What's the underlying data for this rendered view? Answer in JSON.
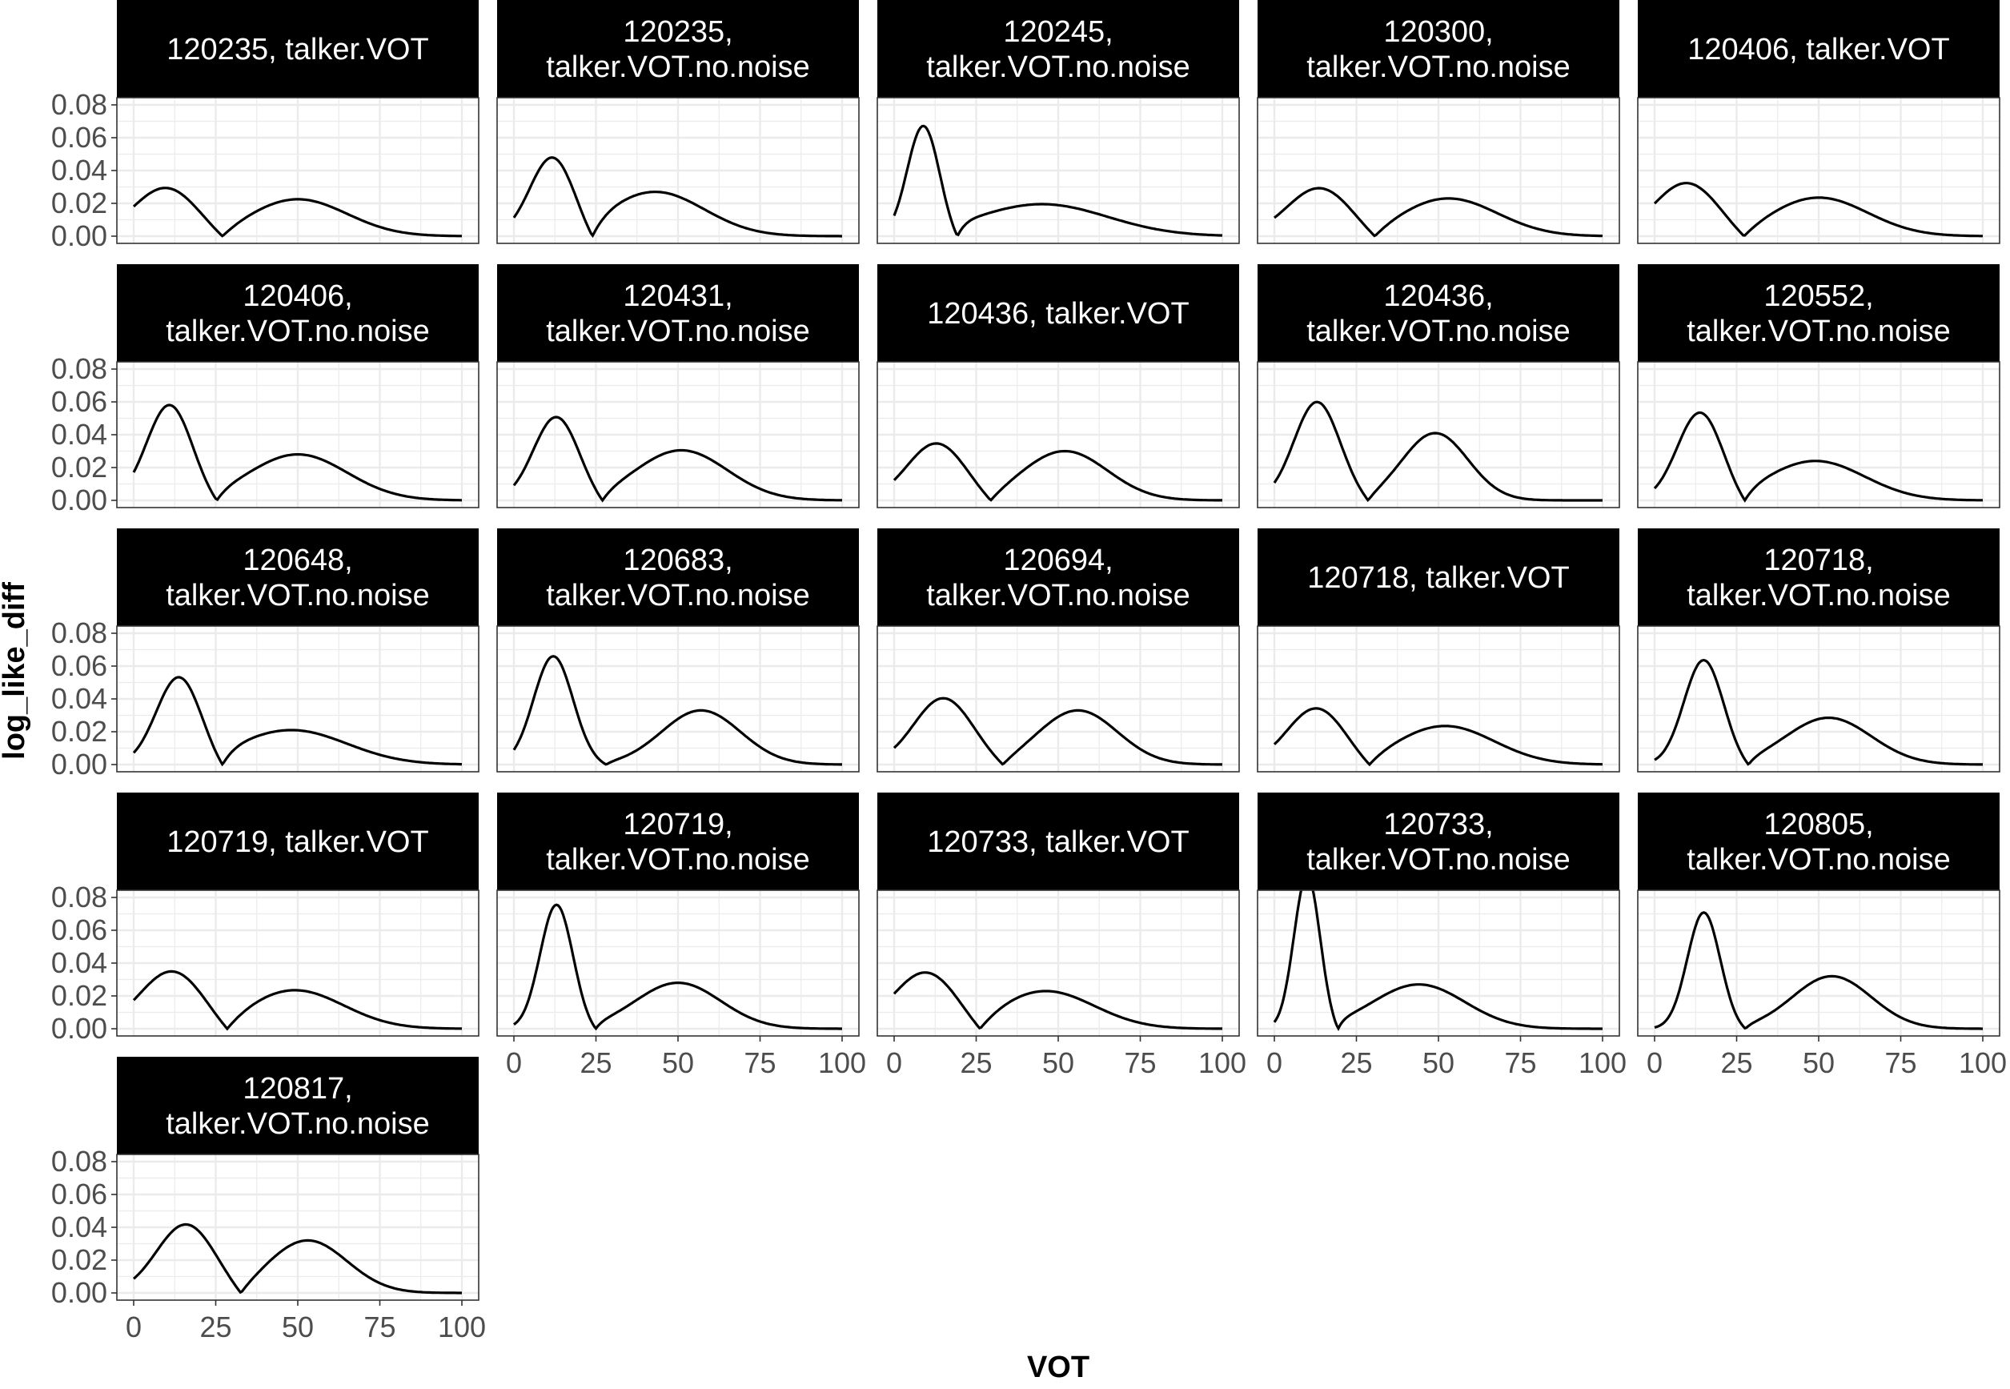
{
  "chart_data": {
    "type": "line",
    "facet_layout": "wrap",
    "x_axis_title": "VOT",
    "y_axis_title": "log_like_diff",
    "xlim": [
      0,
      100
    ],
    "ylim": [
      0,
      0.08
    ],
    "x_ticks": [
      0,
      25,
      50,
      75,
      100
    ],
    "x_tick_labels": [
      "0",
      "25",
      "50",
      "75",
      "100"
    ],
    "y_ticks": [
      0,
      0.02,
      0.04,
      0.06,
      0.08
    ],
    "y_tick_labels": [
      "0.00",
      "0.02",
      "0.04",
      "0.06",
      "0.08"
    ],
    "grid": true,
    "line_color": "#000000",
    "strip_color": "#000000",
    "strip_text_color": "#ffffff",
    "panels": [
      {
        "label": [
          "120235, talker.VOT"
        ],
        "y0": 0.02,
        "bumps": [
          [
            10,
            0.03,
            10
          ],
          [
            50,
            0.0225,
            15
          ]
        ]
      },
      {
        "label": [
          "120235,",
          "talker.VOT.no.noise"
        ],
        "y0": 0.015,
        "bumps": [
          [
            12,
            0.051,
            7
          ],
          [
            43,
            0.027,
            15
          ]
        ]
      },
      {
        "label": [
          "120245,",
          "talker.VOT.no.noise"
        ],
        "y0": 0.015,
        "bumps": [
          [
            9,
            0.071,
            5
          ],
          [
            45,
            0.0195,
            20
          ]
        ]
      },
      {
        "label": [
          "120300,",
          "talker.VOT.no.noise"
        ],
        "y0": 0.012,
        "bumps": [
          [
            14,
            0.03,
            10
          ],
          [
            53,
            0.023,
            15
          ]
        ]
      },
      {
        "label": [
          "120406, talker.VOT"
        ],
        "y0": 0.02,
        "bumps": [
          [
            10,
            0.033,
            10
          ],
          [
            50,
            0.0235,
            15
          ]
        ]
      },
      {
        "label": [
          "120406,",
          "talker.VOT.no.noise"
        ],
        "y0": 0.014,
        "bumps": [
          [
            11,
            0.059,
            7
          ],
          [
            50,
            0.028,
            15
          ]
        ]
      },
      {
        "label": [
          "120431,",
          "talker.VOT.no.noise"
        ],
        "y0": 0.012,
        "bumps": [
          [
            13,
            0.0515,
            7
          ],
          [
            51,
            0.0305,
            14
          ]
        ]
      },
      {
        "label": [
          "120436, talker.VOT"
        ],
        "y0": 0.018,
        "bumps": [
          [
            13,
            0.035,
            9
          ],
          [
            52,
            0.03,
            13
          ]
        ]
      },
      {
        "label": [
          "120436,",
          "talker.VOT.no.noise"
        ],
        "y0": 0.009,
        "bumps": [
          [
            13,
            0.06,
            7
          ],
          [
            49,
            0.041,
            10
          ]
        ]
      },
      {
        "label": [
          "120552,",
          "talker.VOT.no.noise"
        ],
        "y0": 0.007,
        "bumps": [
          [
            14,
            0.055,
            7
          ],
          [
            49,
            0.024,
            15
          ]
        ]
      },
      {
        "label": [
          "120648,",
          "talker.VOT.no.noise"
        ],
        "y0": 0.007,
        "bumps": [
          [
            14,
            0.056,
            7
          ],
          [
            48,
            0.021,
            17
          ]
        ]
      },
      {
        "label": [
          "120683,",
          "talker.VOT.no.noise"
        ],
        "y0": 0.012,
        "bumps": [
          [
            12,
            0.066,
            6
          ],
          [
            57,
            0.033,
            12
          ]
        ]
      },
      {
        "label": [
          "120694,",
          "talker.VOT.no.noise"
        ],
        "y0": 0.013,
        "bumps": [
          [
            15,
            0.0405,
            9
          ],
          [
            56,
            0.033,
            12
          ]
        ]
      },
      {
        "label": [
          "120718, talker.VOT"
        ],
        "y0": 0.014,
        "bumps": [
          [
            13,
            0.035,
            9
          ],
          [
            52,
            0.0235,
            15
          ]
        ]
      },
      {
        "label": [
          "120718,",
          "talker.VOT.no.noise"
        ],
        "y0": 0.005,
        "bumps": [
          [
            15,
            0.064,
            6
          ],
          [
            53,
            0.0285,
            13
          ]
        ]
      },
      {
        "label": [
          "120719, talker.VOT"
        ],
        "y0": 0.019,
        "bumps": [
          [
            12,
            0.036,
            10
          ],
          [
            49,
            0.0235,
            15
          ]
        ]
      },
      {
        "label": [
          "120719,",
          "talker.VOT.no.noise"
        ],
        "y0": 0.005,
        "bumps": [
          [
            13,
            0.076,
            5
          ],
          [
            50,
            0.028,
            13
          ]
        ]
      },
      {
        "label": [
          "120733, talker.VOT"
        ],
        "y0": 0.022,
        "bumps": [
          [
            10,
            0.0355,
            10
          ],
          [
            46,
            0.023,
            15
          ]
        ]
      },
      {
        "label": [
          "120733,",
          "talker.VOT.no.noise"
        ],
        "y0": 0.008,
        "bumps": [
          [
            10,
            0.095,
            4
          ],
          [
            44,
            0.027,
            14
          ]
        ]
      },
      {
        "label": [
          "120805,",
          "talker.VOT.no.noise"
        ],
        "y0": 0.005,
        "bumps": [
          [
            15,
            0.071,
            5
          ],
          [
            54,
            0.032,
            12
          ]
        ]
      },
      {
        "label": [
          "120817,",
          "talker.VOT.no.noise"
        ],
        "y0": 0.01,
        "bumps": [
          [
            16,
            0.042,
            9
          ],
          [
            53,
            0.032,
            12
          ]
        ]
      }
    ]
  }
}
